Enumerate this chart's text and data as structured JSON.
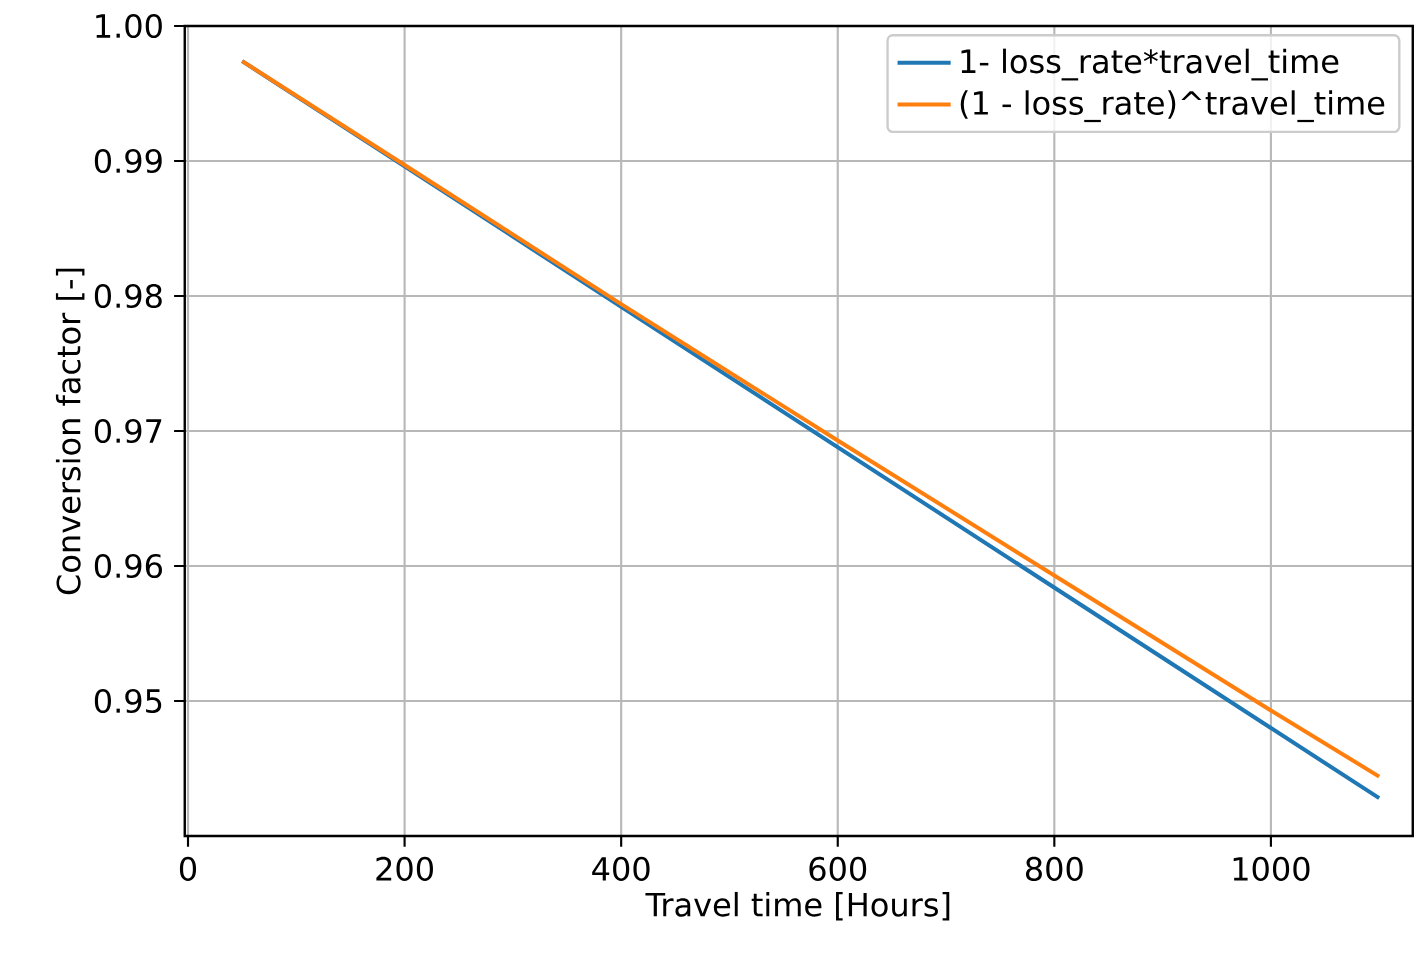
{
  "chart_data": {
    "type": "line",
    "xlabel": "Travel time [Hours]",
    "ylabel": "Conversion factor [-]",
    "x": [
      50,
      200,
      400,
      600,
      800,
      1000,
      1100
    ],
    "series": [
      {
        "name": "1- loss_rate*travel_time",
        "color": "#1f77b4",
        "values": [
          0.9974,
          0.9896,
          0.9792,
          0.9688,
          0.9584,
          0.948,
          0.9428
        ]
      },
      {
        "name": "(1 - loss_rate)^travel_time",
        "color": "#ff7f0e",
        "values": [
          0.9974,
          0.9897,
          0.9794,
          0.9693,
          0.9593,
          0.9493,
          0.9444
        ]
      }
    ],
    "xlim": [
      -3,
      1131
    ],
    "ylim": [
      0.94,
      1.0
    ],
    "xticks": [
      0,
      200,
      400,
      600,
      800,
      1000
    ],
    "yticks": [
      0.95,
      0.96,
      0.97,
      0.98,
      0.99,
      {
        "value": 1.0,
        "label": "1.00"
      }
    ],
    "grid": true,
    "legend": "top right",
    "marker": "none",
    "line_style": "solid"
  }
}
